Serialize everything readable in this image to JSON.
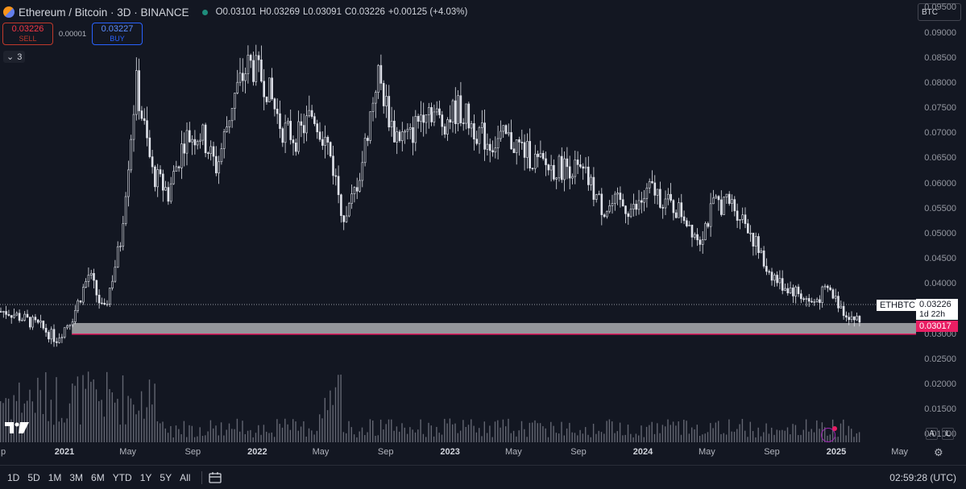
{
  "header": {
    "symbol_title": "Ethereum / Bitcoin · 3D · BINANCE",
    "ohlc": {
      "open_label": "O",
      "open": "0.03101",
      "high_label": "H",
      "high": "0.03269",
      "low_label": "L",
      "low": "0.03091",
      "close_label": "C",
      "close": "0.03226",
      "change": "+0.00125 (+4.03%)"
    }
  },
  "trade": {
    "sell_price": "0.03226",
    "sell_label": "SELL",
    "spread": "0.00001",
    "buy_price": "0.03227",
    "buy_label": "BUY"
  },
  "indicators_collapse": {
    "count": "3"
  },
  "currency_selector": {
    "value": "BTC"
  },
  "price_axis": {
    "ticks": [
      "0.09500",
      "0.09000",
      "0.08500",
      "0.08000",
      "0.07500",
      "0.07000",
      "0.06500",
      "0.06000",
      "0.05500",
      "0.05000",
      "0.04500",
      "0.04000",
      "0.03500",
      "0.03000",
      "0.02500",
      "0.02000",
      "0.01500",
      "0.01000"
    ]
  },
  "tags": {
    "symbol": "ETHBTC",
    "last_price": "0.03226",
    "countdown": "1d 22h",
    "support_price": "0.03017"
  },
  "time_axis": {
    "ticks": [
      {
        "label": "p",
        "major": false
      },
      {
        "label": "2021",
        "major": true
      },
      {
        "label": "May",
        "major": false
      },
      {
        "label": "Sep",
        "major": false
      },
      {
        "label": "2022",
        "major": true
      },
      {
        "label": "May",
        "major": false
      },
      {
        "label": "Sep",
        "major": false
      },
      {
        "label": "2023",
        "major": true
      },
      {
        "label": "May",
        "major": false
      },
      {
        "label": "Sep",
        "major": false
      },
      {
        "label": "2024",
        "major": true
      },
      {
        "label": "May",
        "major": false
      },
      {
        "label": "Sep",
        "major": false
      },
      {
        "label": "2025",
        "major": true
      },
      {
        "label": "May",
        "major": false
      }
    ]
  },
  "bottom_toolbar": {
    "ranges": [
      "1D",
      "5D",
      "1M",
      "3M",
      "6M",
      "YTD",
      "1Y",
      "5Y",
      "All"
    ],
    "clock": "02:59:28 (UTC)"
  },
  "corner_buttons": {
    "auto": "A",
    "log": "L"
  },
  "colors": {
    "background": "#131722",
    "candles": "#e0e3eb",
    "support_zone_line": "#e91e63",
    "volume": "#787b86"
  },
  "chart_data": {
    "type": "candlestick",
    "symbol": "ETHBTC",
    "interval": "3D",
    "ylim": [
      0.0075,
      0.0965
    ],
    "x_range": [
      "2020-09",
      "2025-06"
    ],
    "support_zone": [
      0.03,
      0.0322
    ],
    "last_price": 0.03226,
    "series": [
      {
        "name": "ETHBTC",
        "x": [
          "2020-09",
          "2020-10",
          "2020-11",
          "2020-12",
          "2021-01",
          "2021-02",
          "2021-03",
          "2021-04",
          "2021-05",
          "2021-06",
          "2021-07",
          "2021-08",
          "2021-09",
          "2021-10",
          "2021-11",
          "2021-12",
          "2022-01",
          "2022-02",
          "2022-03",
          "2022-04",
          "2022-05",
          "2022-06",
          "2022-07",
          "2022-08",
          "2022-09",
          "2022-10",
          "2022-11",
          "2022-12",
          "2023-01",
          "2023-02",
          "2023-03",
          "2023-04",
          "2023-05",
          "2023-06",
          "2023-07",
          "2023-08",
          "2023-09",
          "2023-10",
          "2023-11",
          "2023-12",
          "2024-01",
          "2024-02",
          "2024-03",
          "2024-04",
          "2024-05",
          "2024-06",
          "2024-07",
          "2024-08",
          "2024-09",
          "2024-10",
          "2024-11",
          "2024-12",
          "2025-01",
          "2025-02"
        ],
        "values": [
          0.0345,
          0.033,
          0.0315,
          0.029,
          0.0335,
          0.042,
          0.034,
          0.048,
          0.08,
          0.062,
          0.058,
          0.069,
          0.07,
          0.063,
          0.077,
          0.084,
          0.08,
          0.071,
          0.069,
          0.074,
          0.067,
          0.052,
          0.063,
          0.082,
          0.07,
          0.069,
          0.076,
          0.072,
          0.075,
          0.071,
          0.068,
          0.069,
          0.067,
          0.064,
          0.063,
          0.0635,
          0.061,
          0.055,
          0.056,
          0.0545,
          0.059,
          0.056,
          0.054,
          0.049,
          0.056,
          0.056,
          0.052,
          0.044,
          0.04,
          0.0385,
          0.036,
          0.039,
          0.0345,
          0.0322
        ]
      }
    ]
  }
}
